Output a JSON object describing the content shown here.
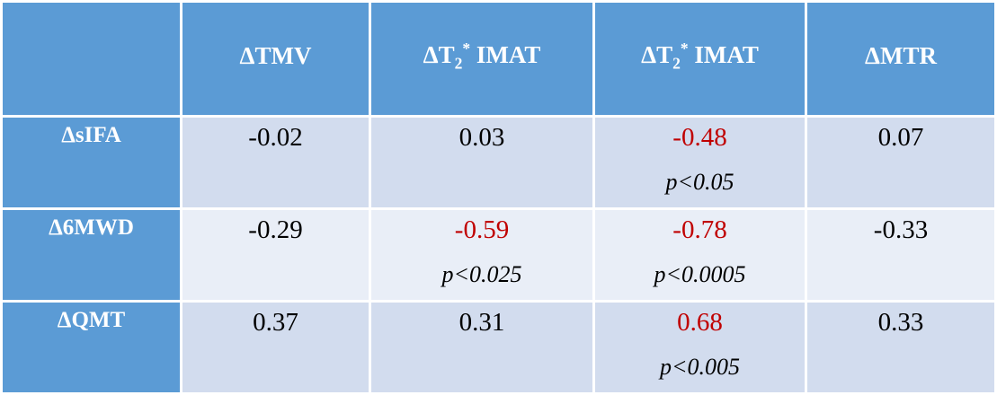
{
  "table": {
    "header": {
      "corner": "",
      "columns": [
        {
          "prefix": "ΔTMV",
          "sub": "",
          "sup": "",
          "suffix": ""
        },
        {
          "prefix": "ΔT",
          "sub": "2",
          "sup": "*",
          "suffix": " IMAT"
        },
        {
          "prefix": "ΔT",
          "sub": "2",
          "sup": "*",
          "suffix": " IMAT"
        },
        {
          "prefix": "ΔMTR",
          "sub": "",
          "sup": "",
          "suffix": ""
        }
      ]
    },
    "rows": [
      {
        "label": "ΔsIFA",
        "cells": [
          {
            "value": "-0.02",
            "p": ""
          },
          {
            "value": "0.03",
            "p": ""
          },
          {
            "value": "-0.48",
            "p": "p<0.05"
          },
          {
            "value": "0.07",
            "p": ""
          }
        ]
      },
      {
        "label": "Δ6MWD",
        "cells": [
          {
            "value": "-0.29",
            "p": ""
          },
          {
            "value": "-0.59",
            "p": "p<0.025"
          },
          {
            "value": "-0.78",
            "p": "p<0.0005"
          },
          {
            "value": "-0.33",
            "p": ""
          }
        ]
      },
      {
        "label": "ΔQMT",
        "cells": [
          {
            "value": "0.37",
            "p": ""
          },
          {
            "value": "0.31",
            "p": ""
          },
          {
            "value": "0.68",
            "p": "p<0.005"
          },
          {
            "value": "0.33",
            "p": ""
          }
        ]
      }
    ],
    "colors": {
      "header_bg": "#5b9bd5",
      "row_band_dark": "#d2dcee",
      "row_band_light": "#e9eef7",
      "significant_text": "#c00000"
    }
  }
}
